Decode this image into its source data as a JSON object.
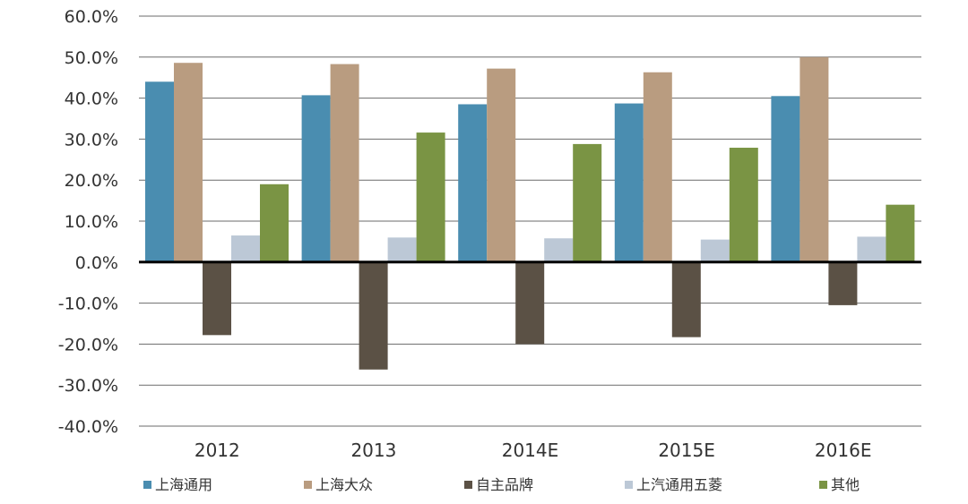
{
  "chart_data": {
    "type": "bar",
    "title": "",
    "xlabel": "",
    "ylabel": "",
    "categories": [
      "2012",
      "2013",
      "2014E",
      "2015E",
      "2016E"
    ],
    "ylim": [
      -0.4,
      0.6
    ],
    "yticks": [
      0.6,
      0.5,
      0.4,
      0.3,
      0.2,
      0.1,
      0.0,
      -0.1,
      -0.2,
      -0.3,
      -0.4
    ],
    "ytick_labels": [
      "60.0%",
      "50.0%",
      "40.0%",
      "30.0%",
      "20.0%",
      "10.0%",
      "0.0%",
      "-10.0%",
      "-20.0%",
      "-30.0%",
      "-40.0%"
    ],
    "grid": true,
    "legend_position": "bottom",
    "series": [
      {
        "name": "上海通用",
        "color": "#4A8DB0",
        "values": [
          0.44,
          0.407,
          0.385,
          0.387,
          0.405
        ]
      },
      {
        "name": "上海大众",
        "color": "#B99C80",
        "values": [
          0.486,
          0.483,
          0.472,
          0.463,
          0.5
        ]
      },
      {
        "name": "自主品牌",
        "color": "#5B5145",
        "values": [
          -0.178,
          -0.262,
          -0.2,
          -0.183,
          -0.105
        ]
      },
      {
        "name": "上汽通用五菱",
        "color": "#BCC8D6",
        "values": [
          0.065,
          0.06,
          0.058,
          0.055,
          0.062
        ]
      },
      {
        "name": "其他",
        "color": "#7A9444",
        "values": [
          0.19,
          0.316,
          0.288,
          0.279,
          0.14
        ]
      }
    ]
  }
}
